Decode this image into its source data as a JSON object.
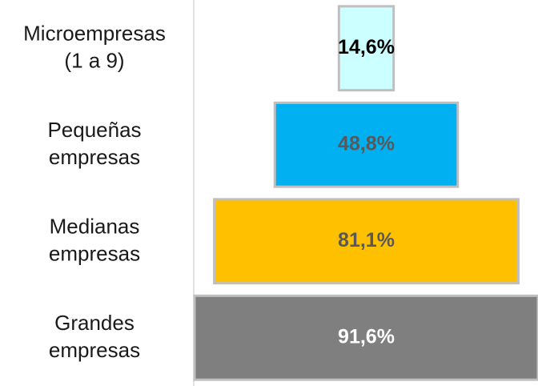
{
  "chart_data": {
    "type": "funnel",
    "categories": [
      "Microempresas\n(1 a 9)",
      "Pequeñas\nempresas",
      "Medianas\nempresas",
      "Grandes\nempresas"
    ],
    "values": [
      14.6,
      48.8,
      81.1,
      91.6
    ],
    "value_labels": [
      "14,6%",
      "48,8%",
      "81,1%",
      "91,6%"
    ],
    "colors": [
      "#ccffff",
      "#00b0f0",
      "#ffc000",
      "#7f7f7f"
    ],
    "label_colors": [
      "#000000",
      "#595959",
      "#595959",
      "#ffffff"
    ]
  }
}
